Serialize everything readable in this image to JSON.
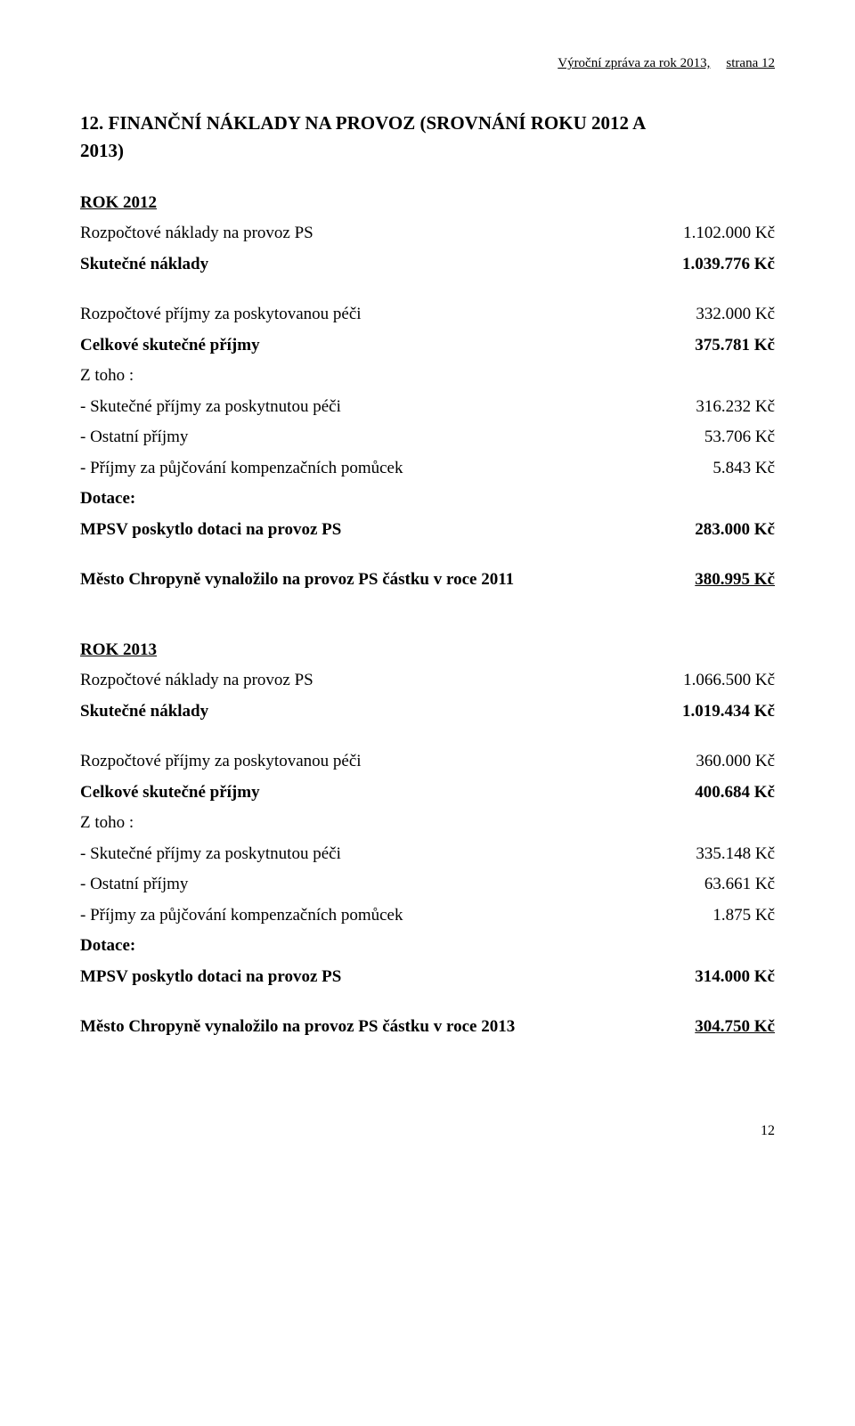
{
  "header": {
    "title": "Výroční zpráva za rok 2013,",
    "page_label": "strana 12"
  },
  "section_title_line1": "12.   FINANČNÍ NÁKLADY NA PROVOZ (SROVNÁNÍ    ROKU 2012 A",
  "section_title_line2": "2013)",
  "rok2012": {
    "heading": "ROK 2012",
    "rozpoctove_naklady_label": "Rozpočtové náklady na provoz PS",
    "rozpoctove_naklady_value": "1.102.000 Kč",
    "skutecne_naklady_label": "Skutečné náklady",
    "skutecne_naklady_value": "1.039.776 Kč",
    "rozpoctove_prijmy_label": "Rozpočtové příjmy za poskytovanou péči",
    "rozpoctove_prijmy_value": "332.000 Kč",
    "celkove_prijmy_label": "Celkové skutečné příjmy",
    "celkove_prijmy_value": "375.781 Kč",
    "ztoho": "Z toho :",
    "skutecne_prijmy_label": " - Skutečné příjmy za poskytnutou péči",
    "skutecne_prijmy_value": "316.232 Kč",
    "ostatni_label": "-  Ostatní příjmy",
    "ostatni_value": "53.706 Kč",
    "pujcovani_label": "-  Příjmy za půjčování kompenzačních pomůcek",
    "pujcovani_value": "5.843 Kč",
    "dotace": "Dotace:",
    "mpsv_label": "MPSV poskytlo dotaci na provoz PS",
    "mpsv_value": "283.000 Kč",
    "mesto_label": "Město Chropyně vynaložilo na provoz PS částku v roce 2011",
    "mesto_value": "380.995 Kč"
  },
  "rok2013": {
    "heading": "ROK 2013",
    "rozpoctove_naklady_label": "Rozpočtové náklady na provoz PS",
    "rozpoctove_naklady_value": "1.066.500 Kč",
    "skutecne_naklady_label": "Skutečné náklady",
    "skutecne_naklady_value": "1.019.434 Kč",
    "rozpoctove_prijmy_label": "Rozpočtové příjmy za poskytovanou péči",
    "rozpoctove_prijmy_value": "360.000 Kč",
    "celkove_prijmy_label": "Celkové skutečné příjmy",
    "celkove_prijmy_value": "400.684 Kč",
    "ztoho": "Z toho :",
    "skutecne_prijmy_label": " - Skutečné příjmy za poskytnutou péči",
    "skutecne_prijmy_value": "335.148 Kč",
    "ostatni_label": "-  Ostatní příjmy",
    "ostatni_value": "63.661 Kč",
    "pujcovani_label": "-  Příjmy za půjčování kompenzačních pomůcek",
    "pujcovani_value": "1.875 Kč",
    "dotace": "Dotace:",
    "mpsv_label": "MPSV poskytlo dotaci na provoz PS",
    "mpsv_value": "314.000 Kč",
    "mesto_label": "Město Chropyně vynaložilo na provoz PS částku v roce 2013",
    "mesto_value": "304.750 Kč"
  },
  "page_number": "12"
}
